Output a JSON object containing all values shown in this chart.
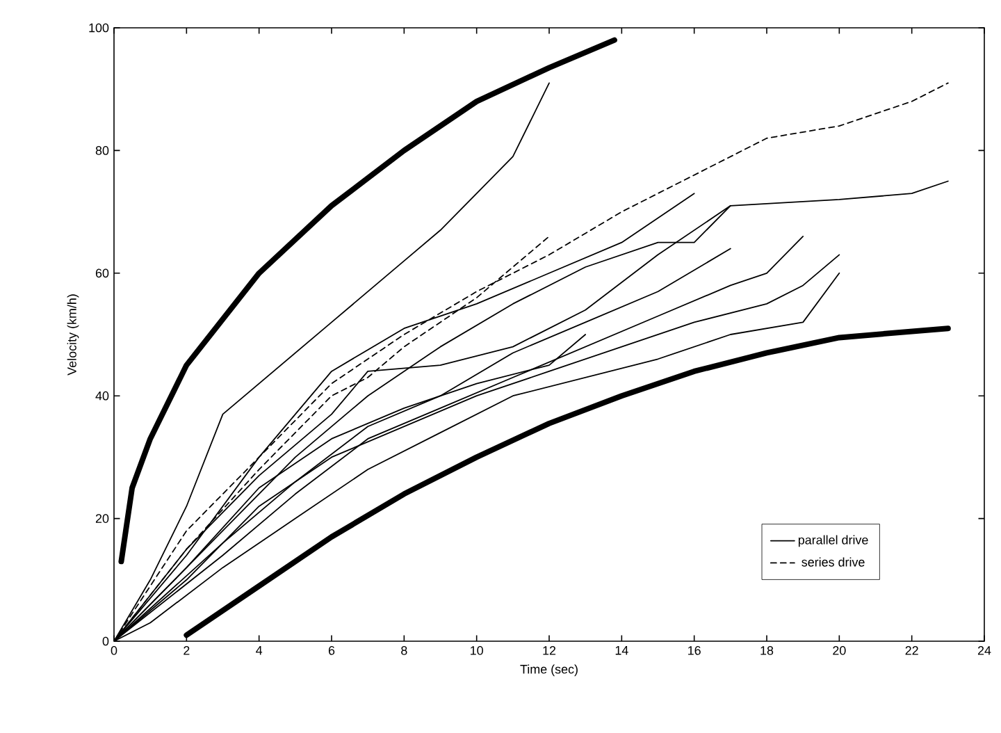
{
  "chart_data": {
    "type": "line",
    "xlabel": "Time (sec)",
    "ylabel": "Velocity (km/h)",
    "xlim": [
      0,
      24
    ],
    "ylim": [
      0,
      100
    ],
    "xticks": [
      0,
      2,
      4,
      6,
      8,
      10,
      12,
      14,
      16,
      18,
      20,
      22,
      24
    ],
    "yticks": [
      0,
      20,
      40,
      60,
      80,
      100
    ],
    "grid": false,
    "legend": "bottom right",
    "marker": "none",
    "series": [
      {
        "color": "#000000",
        "x": [
          0.2,
          0.5,
          1,
          2,
          4,
          6,
          8,
          10,
          12,
          13.8
        ],
        "values": [
          13,
          25,
          33,
          45,
          60,
          71,
          80,
          88,
          93.5,
          98
        ]
      },
      {
        "color": "#000000",
        "x": [
          2,
          4,
          6,
          8,
          10,
          12,
          14,
          16,
          18,
          20,
          23
        ],
        "values": [
          1,
          9,
          17,
          24,
          30,
          35.5,
          40,
          44,
          47,
          49.5,
          51
        ]
      },
      {
        "name": "parallel drive",
        "color": "#000000",
        "line_style": "solid",
        "x": [
          0,
          2,
          4,
          6,
          7,
          9,
          11,
          13,
          15,
          17,
          20,
          22,
          23
        ],
        "values": [
          0,
          15,
          27,
          37,
          44,
          45,
          48,
          54,
          63,
          71,
          72,
          73,
          75
        ]
      },
      {
        "name": "series drive",
        "color": "#000000",
        "line_style": "dashed",
        "x": [
          0,
          2,
          4,
          6,
          8,
          10,
          12,
          14,
          16,
          18,
          20,
          22,
          23
        ],
        "values": [
          0,
          18,
          30,
          42,
          50,
          57,
          63,
          70,
          76,
          82,
          84,
          88,
          91
        ]
      },
      {
        "color": "#000000",
        "line_style": "dashed",
        "x": [
          0,
          2,
          4,
          6,
          7,
          8,
          10,
          11,
          12
        ],
        "values": [
          0,
          15,
          28,
          40,
          43,
          48,
          56,
          61,
          66
        ]
      },
      {
        "color": "#000000",
        "line_style": "solid",
        "x": [
          0,
          1,
          2,
          3,
          6,
          8,
          9,
          10,
          11,
          12
        ],
        "values": [
          0,
          10,
          22,
          37,
          52,
          62,
          67,
          73,
          79,
          91
        ]
      },
      {
        "color": "#000000",
        "line_style": "solid",
        "x": [
          0,
          2,
          4,
          6,
          8,
          10,
          12,
          14,
          16
        ],
        "values": [
          0,
          14,
          30,
          44,
          51,
          55,
          60,
          65,
          73
        ]
      },
      {
        "color": "#000000",
        "line_style": "solid",
        "x": [
          0,
          3,
          5,
          7,
          9,
          11,
          13,
          15,
          16,
          17
        ],
        "values": [
          0,
          18,
          30,
          40,
          48,
          55,
          61,
          65,
          65,
          71
        ]
      },
      {
        "color": "#000000",
        "line_style": "solid",
        "x": [
          0,
          3,
          5,
          7,
          9,
          11,
          13,
          15,
          17,
          18,
          19
        ],
        "values": [
          0,
          14,
          24,
          33,
          38,
          43,
          48,
          53,
          58,
          60,
          66
        ]
      },
      {
        "color": "#000000",
        "line_style": "solid",
        "x": [
          0,
          3,
          5,
          7,
          9,
          11,
          13,
          15,
          17
        ],
        "values": [
          0,
          16,
          26,
          35,
          40,
          47,
          52,
          57,
          64
        ]
      },
      {
        "color": "#000000",
        "line_style": "solid",
        "x": [
          0,
          2,
          4,
          6,
          8,
          10,
          12,
          14,
          16,
          18,
          19,
          20
        ],
        "values": [
          0,
          10,
          22,
          30,
          35,
          40,
          44,
          48,
          52,
          55,
          58,
          63
        ]
      },
      {
        "color": "#000000",
        "line_style": "solid",
        "x": [
          0,
          1,
          3,
          5,
          7,
          9,
          11,
          13,
          15,
          17,
          19,
          20
        ],
        "values": [
          0,
          3,
          12,
          20,
          28,
          34,
          40,
          43,
          46,
          50,
          52,
          60
        ]
      },
      {
        "color": "#000000",
        "line_style": "solid",
        "x": [
          0,
          2,
          4,
          6,
          8,
          10,
          12,
          13
        ],
        "values": [
          0,
          12,
          25,
          33,
          38,
          42,
          45,
          50
        ]
      }
    ]
  }
}
